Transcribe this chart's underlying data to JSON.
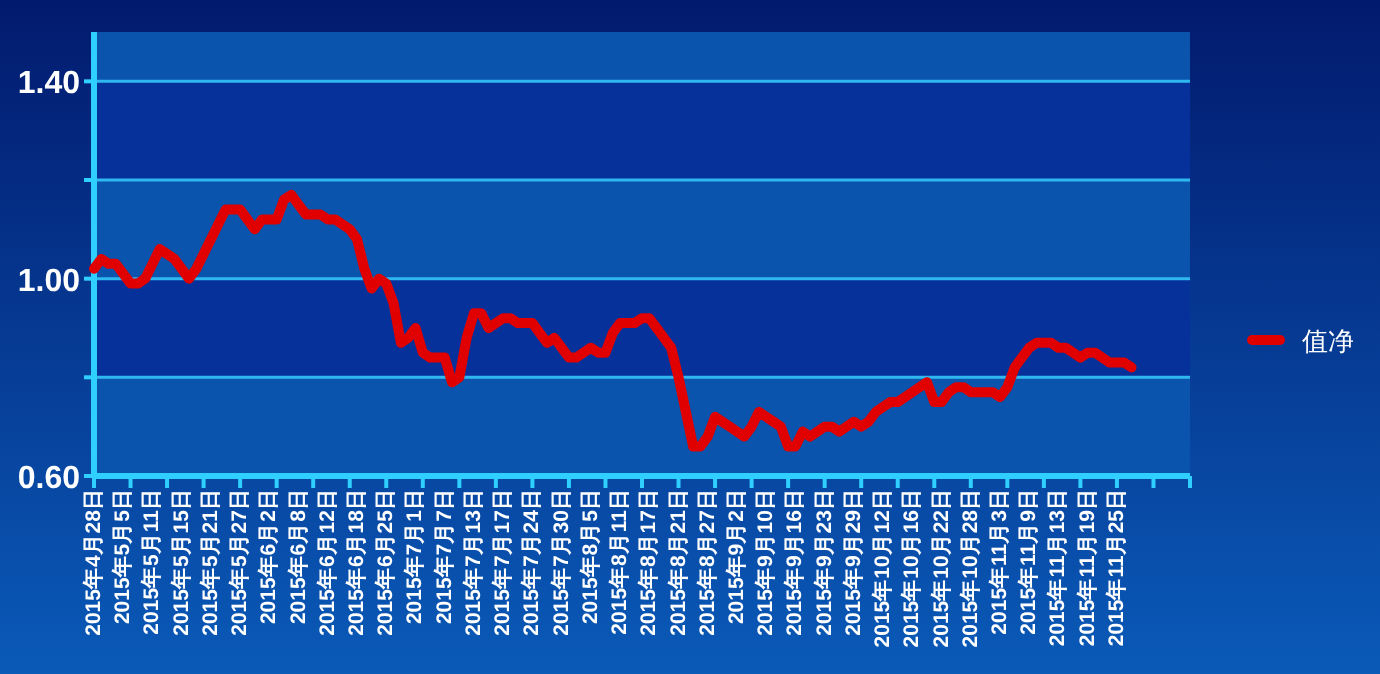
{
  "chart_data": {
    "type": "line",
    "categories": [
      "2015年4月28日",
      null,
      null,
      null,
      "2015年5月5日",
      null,
      null,
      null,
      "2015年5月11日",
      null,
      null,
      null,
      "2015年5月15日",
      null,
      null,
      null,
      "2015年5月21日",
      null,
      null,
      null,
      "2015年5月27日",
      null,
      null,
      null,
      "2015年6月2日",
      null,
      null,
      null,
      "2015年6月8日",
      null,
      null,
      null,
      "2015年6月12日",
      null,
      null,
      null,
      "2015年6月18日",
      null,
      null,
      null,
      "2015年6月25日",
      null,
      null,
      null,
      "2015年7月1日",
      null,
      null,
      null,
      "2015年7月7日",
      null,
      null,
      null,
      "2015年7月13日",
      null,
      null,
      null,
      "2015年7月17日",
      null,
      null,
      null,
      "2015年7月24日",
      null,
      null,
      null,
      "2015年7月30日",
      null,
      null,
      null,
      "2015年8月5日",
      null,
      null,
      null,
      "2015年8月11日",
      null,
      null,
      null,
      "2015年8月17日",
      null,
      null,
      null,
      "2015年8月21日",
      null,
      null,
      null,
      "2015年8月27日",
      null,
      null,
      null,
      "2015年9月2日",
      null,
      null,
      null,
      "2015年9月10日",
      null,
      null,
      null,
      "2015年9月16日",
      null,
      null,
      null,
      "2015年9月23日",
      null,
      null,
      null,
      "2015年9月29日",
      null,
      null,
      null,
      "2015年10月12日",
      null,
      null,
      null,
      "2015年10月16日",
      null,
      null,
      null,
      "2015年10月22日",
      null,
      null,
      null,
      "2015年10月28日",
      null,
      null,
      null,
      "2015年11月3日",
      null,
      null,
      null,
      "2015年11月9日",
      null,
      null,
      null,
      "2015年11月13日",
      null,
      null,
      null,
      "2015年11月19日",
      null,
      null,
      null,
      "2015年11月25日",
      null,
      null,
      null,
      null,
      null,
      null,
      null,
      null,
      null,
      null
    ],
    "series": [
      {
        "name": "值净",
        "color": "#e00000",
        "values": [
          1.02,
          1.04,
          1.03,
          1.03,
          1.01,
          0.99,
          0.99,
          1.0,
          1.03,
          1.06,
          1.05,
          1.04,
          1.02,
          1.0,
          1.02,
          1.05,
          1.08,
          1.11,
          1.14,
          1.14,
          1.14,
          1.12,
          1.1,
          1.12,
          1.12,
          1.12,
          1.16,
          1.17,
          1.15,
          1.13,
          1.13,
          1.13,
          1.12,
          1.12,
          1.11,
          1.1,
          1.08,
          1.02,
          0.98,
          1.0,
          0.99,
          0.95,
          0.87,
          0.88,
          0.9,
          0.85,
          0.84,
          0.84,
          0.84,
          0.79,
          0.8,
          0.88,
          0.93,
          0.93,
          0.9,
          0.91,
          0.92,
          0.92,
          0.91,
          0.91,
          0.91,
          0.89,
          0.87,
          0.88,
          0.86,
          0.84,
          0.84,
          0.85,
          0.86,
          0.85,
          0.85,
          0.89,
          0.91,
          0.91,
          0.91,
          0.92,
          0.92,
          0.9,
          0.88,
          0.86,
          0.8,
          0.73,
          0.66,
          0.66,
          0.68,
          0.72,
          0.71,
          0.7,
          0.69,
          0.68,
          0.7,
          0.73,
          0.72,
          0.71,
          0.7,
          0.66,
          0.66,
          0.69,
          0.68,
          0.69,
          0.7,
          0.7,
          0.69,
          0.7,
          0.71,
          0.7,
          0.71,
          0.73,
          0.74,
          0.75,
          0.75,
          0.76,
          0.77,
          0.78,
          0.79,
          0.75,
          0.75,
          0.77,
          0.78,
          0.78,
          0.77,
          0.77,
          0.77,
          0.77,
          0.76,
          0.78,
          0.82,
          0.84,
          0.86,
          0.87,
          0.87,
          0.87,
          0.86,
          0.86,
          0.85,
          0.84,
          0.85,
          0.85,
          0.84,
          0.83,
          0.83,
          0.83,
          0.82,
          null,
          null,
          null,
          null,
          null,
          null,
          null,
          null
        ]
      }
    ],
    "ylim": [
      0.6,
      1.5
    ],
    "yticks": [
      {
        "value": 0.6,
        "label": "0.60"
      },
      {
        "value": 0.8,
        "label": null
      },
      {
        "value": 1.0,
        "label": "1.00"
      },
      {
        "value": 1.2,
        "label": null
      },
      {
        "value": 1.4,
        "label": "1.40"
      }
    ],
    "bands": [
      {
        "axis": "y",
        "from": 0.6,
        "to": 0.8,
        "color": "#0a54ad"
      },
      {
        "axis": "y",
        "from": 0.8,
        "to": 1.0,
        "color": "#06319a"
      },
      {
        "axis": "y",
        "from": 1.0,
        "to": 1.2,
        "color": "#0a54ad"
      },
      {
        "axis": "y",
        "from": 1.2,
        "to": 1.4,
        "color": "#06319a"
      },
      {
        "axis": "y",
        "from": 1.4,
        "to": 1.5,
        "color": "#0a54ad"
      }
    ],
    "grid": "y",
    "legend": "right",
    "marker": "none",
    "line_style": "solid"
  }
}
